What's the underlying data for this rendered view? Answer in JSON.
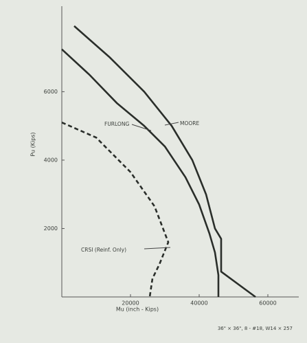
{
  "chart_data": {
    "type": "line",
    "xlabel": "Mu (inch - Kips)",
    "ylabel": "Pu (Kips)",
    "note": "36\" × 36\", 8 - #18, W14 × 257",
    "xlim": [
      0,
      69000
    ],
    "ylim": [
      0,
      8500
    ],
    "xticks": [
      20000,
      40000,
      60000
    ],
    "yticks": [
      2000,
      4000,
      6000
    ],
    "series": [
      {
        "name": "MOORE",
        "color": "#2a2e2a",
        "dash": false,
        "x": [
          3600,
          14000,
          24000,
          32000,
          38000,
          42000,
          44600,
          46400,
          46400,
          56400
        ],
        "values": [
          7920,
          7000,
          6000,
          5000,
          4000,
          3000,
          2000,
          1700,
          740,
          0
        ]
      },
      {
        "name": "FURLONG",
        "color": "#2a2e2a",
        "dash": false,
        "x": [
          0,
          8000,
          16000,
          24000,
          30000,
          36000,
          40000,
          43000,
          44600,
          45600,
          45600
        ],
        "values": [
          7240,
          6500,
          5670,
          5000,
          4400,
          3500,
          2700,
          1850,
          1300,
          640,
          0
        ]
      },
      {
        "name": "CRSI (Reinf. Only)",
        "color": "#2a2e2a",
        "dash": true,
        "x": [
          0,
          10000,
          20000,
          27000,
          31000,
          28400,
          26400,
          25600
        ],
        "values": [
          5100,
          4660,
          3650,
          2650,
          1600,
          950,
          540,
          0
        ]
      }
    ]
  }
}
